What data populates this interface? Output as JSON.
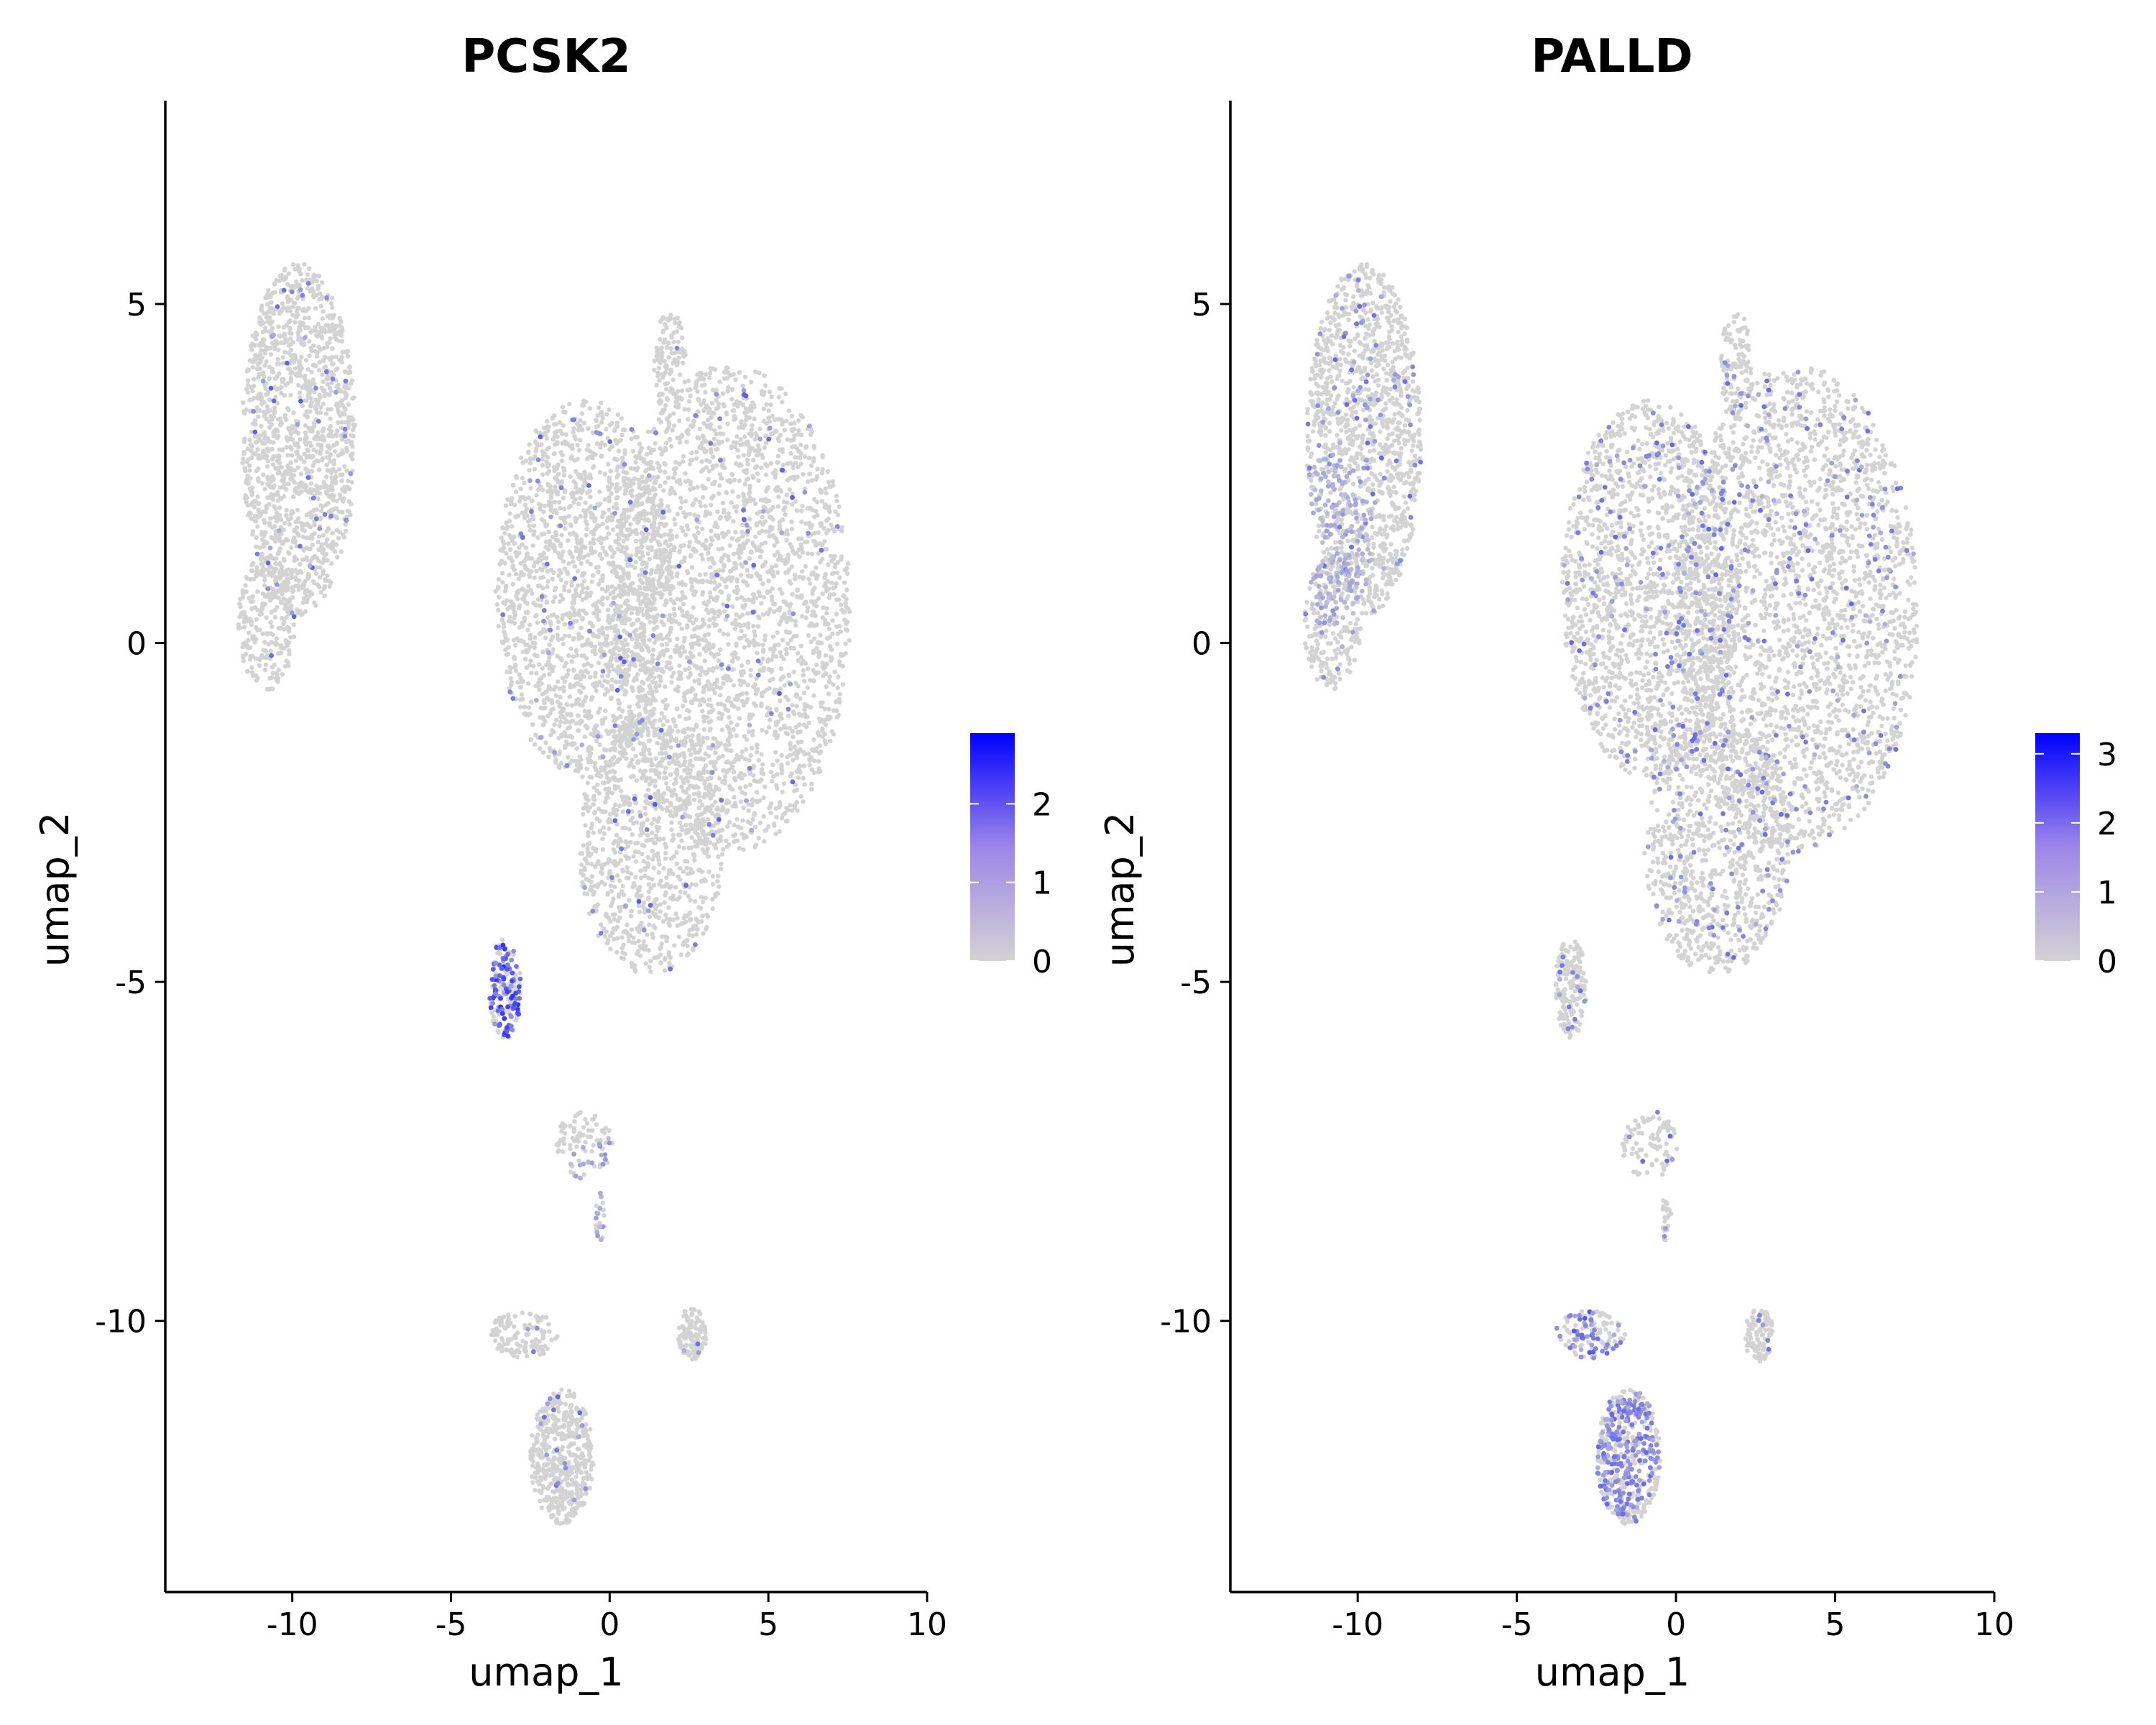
{
  "chart_data": [
    {
      "type": "scatter",
      "title": "PCSK2",
      "xlabel": "umap_1",
      "ylabel": "umap_2",
      "xlim": [
        -14,
        10
      ],
      "ylim": [
        -14,
        8
      ],
      "x_ticks": [
        -10,
        -5,
        0,
        5,
        10
      ],
      "y_ticks": [
        5,
        0,
        -5,
        -10
      ],
      "grid": false,
      "color_low": "#d3d3d3",
      "color_high": "#0000ff",
      "colorbar": {
        "ticks": [
          0,
          1,
          2
        ],
        "max": 2.9,
        "placement": "right"
      },
      "highlight_clusters": [
        {
          "center": [
            -3.3,
            -5.1
          ],
          "expression": 1.8
        },
        {
          "center": [
            -0.5,
            -8.5
          ],
          "expression": 0.7
        }
      ],
      "sparse_expression": 0.03
    },
    {
      "type": "scatter",
      "title": "PALLD",
      "xlabel": "umap_1",
      "ylabel": "umap_2",
      "xlim": [
        -14,
        10
      ],
      "ylim": [
        -14,
        8
      ],
      "x_ticks": [
        -10,
        -5,
        0,
        5,
        10
      ],
      "y_ticks": [
        5,
        0,
        -5,
        -10
      ],
      "grid": false,
      "color_low": "#d3d3d3",
      "color_high": "#0000ff",
      "colorbar": {
        "ticks": [
          0,
          1,
          2,
          3
        ],
        "max": 3.3,
        "placement": "right"
      },
      "highlight_clusters": [
        {
          "center": [
            -1.8,
            -11.6
          ],
          "expression": 1.3
        },
        {
          "center": [
            -3.7,
            -10.2
          ],
          "expression": 1.6
        },
        {
          "center": [
            -10.8,
            1.5
          ],
          "expression": 0.6
        }
      ],
      "sparse_expression": 0.08
    }
  ],
  "clusters": [
    {
      "name": "left-top",
      "center": [
        -9.8,
        3.0
      ],
      "radius": [
        1.8,
        2.6
      ],
      "n": 1400
    },
    {
      "name": "left-bottom",
      "center": [
        -10.8,
        0.3
      ],
      "radius": [
        0.9,
        1.0
      ],
      "n": 250
    },
    {
      "name": "main-upper-right",
      "center": [
        3.8,
        0.5
      ],
      "radius": [
        3.8,
        3.6
      ],
      "n": 2600
    },
    {
      "name": "main-upper-left",
      "center": [
        -0.8,
        0.8
      ],
      "radius": [
        2.8,
        2.8
      ],
      "n": 1800
    },
    {
      "name": "main-lower",
      "center": [
        1.3,
        -3.0
      ],
      "radius": [
        2.3,
        1.9
      ],
      "n": 900
    },
    {
      "name": "lobe-top",
      "center": [
        1.9,
        4.1
      ],
      "radius": [
        0.5,
        0.8
      ],
      "n": 120
    },
    {
      "name": "small-left",
      "center": [
        -3.3,
        -5.1
      ],
      "radius": [
        0.5,
        0.75
      ],
      "n": 190
    },
    {
      "name": "mid-strand",
      "center": [
        -0.8,
        -7.4
      ],
      "radius": [
        0.9,
        0.5
      ],
      "n": 90
    },
    {
      "name": "mid-tail",
      "center": [
        -0.3,
        -8.5
      ],
      "radius": [
        0.15,
        0.4
      ],
      "n": 25
    },
    {
      "name": "bottom-left",
      "center": [
        -1.5,
        -12.0
      ],
      "radius": [
        1.0,
        1.0
      ],
      "n": 500
    },
    {
      "name": "bottom-arm",
      "center": [
        -2.7,
        -10.2
      ],
      "radius": [
        1.1,
        0.35
      ],
      "n": 120
    },
    {
      "name": "bottom-right",
      "center": [
        2.6,
        -10.2
      ],
      "radius": [
        0.45,
        0.4
      ],
      "n": 110
    }
  ]
}
